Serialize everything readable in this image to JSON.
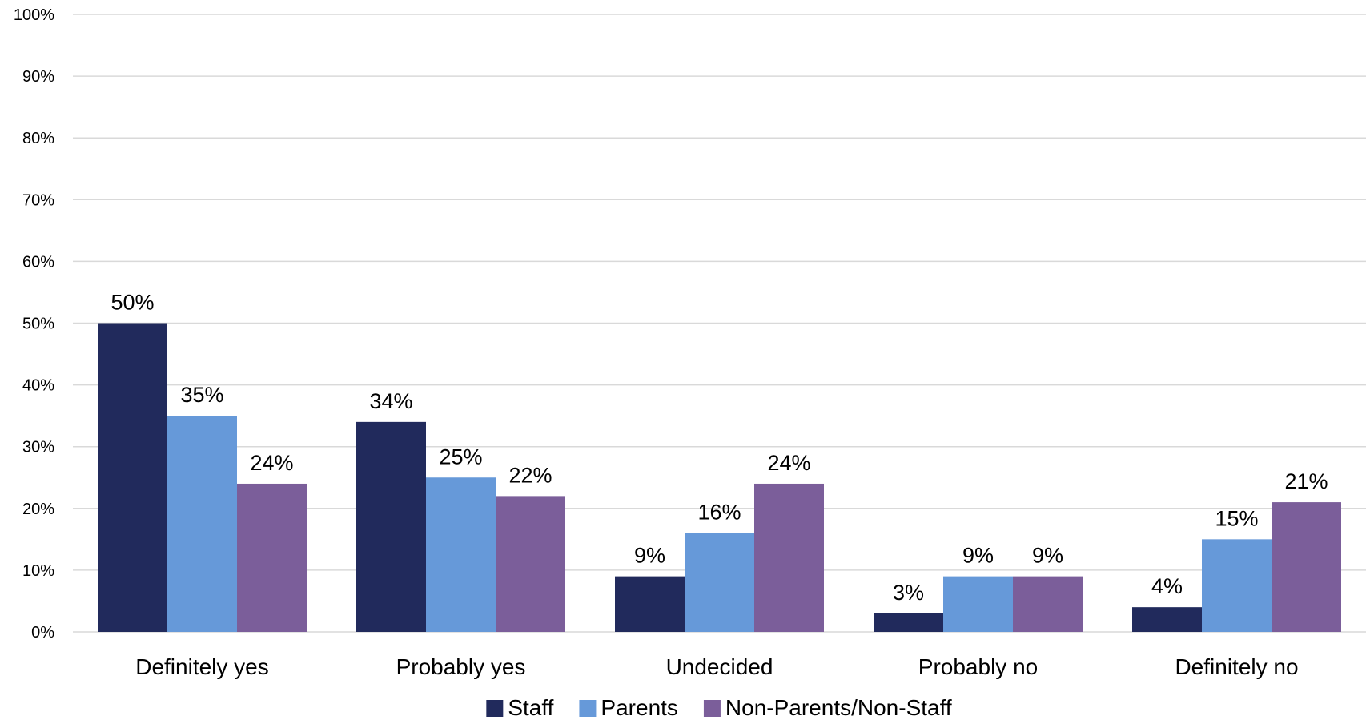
{
  "chart_data": {
    "type": "bar",
    "categories": [
      "Definitely yes",
      "Probably yes",
      "Undecided",
      "Probably no",
      "Definitely no"
    ],
    "series": [
      {
        "name": "Staff",
        "values": [
          50,
          34,
          9,
          3,
          4
        ],
        "color": "#212a5c"
      },
      {
        "name": "Parents",
        "values": [
          35,
          25,
          16,
          9,
          15
        ],
        "color": "#6699d9"
      },
      {
        "name": "Non-Parents/Non-Staff",
        "values": [
          24,
          22,
          24,
          9,
          21
        ],
        "color": "#7b5e9a"
      }
    ],
    "yticks": [
      "0%",
      "10%",
      "20%",
      "30%",
      "40%",
      "50%",
      "60%",
      "70%",
      "80%",
      "90%",
      "100%"
    ],
    "ylim": [
      0,
      100
    ],
    "value_suffix": "%",
    "grid": true,
    "legend": "bottom",
    "title": "",
    "xlabel": "",
    "ylabel": ""
  }
}
